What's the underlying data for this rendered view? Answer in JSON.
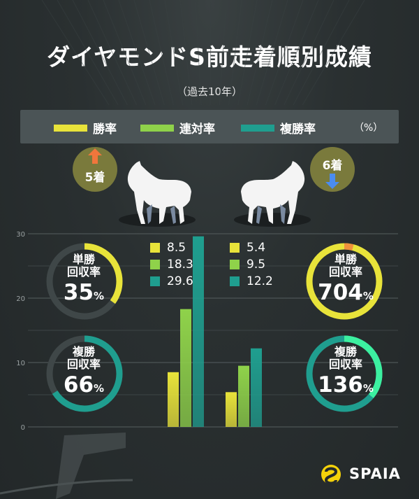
{
  "title": "ダイヤモンドS前走着順別成績",
  "subtitle": "（過去10年）",
  "legend": {
    "items": [
      {
        "label": "勝率",
        "color": "#e8e33a"
      },
      {
        "label": "連対率",
        "color": "#8fd24a"
      },
      {
        "label": "複勝率",
        "color": "#1f9e8f"
      }
    ],
    "unit": "（%）"
  },
  "groups": {
    "left": {
      "label": "5着",
      "arrow": "up"
    },
    "right": {
      "label": "6着",
      "arrow": "down"
    }
  },
  "values_text": {
    "left": [
      "8.5",
      "18.3",
      "29.6"
    ],
    "right": [
      "5.4",
      "9.5",
      "12.2"
    ]
  },
  "rings": {
    "left_win": {
      "label1": "単勝",
      "label2": "回収率",
      "value": "35",
      "unit": "%",
      "fraction": 0.35,
      "color": "#e8e33a"
    },
    "left_place": {
      "label1": "複勝",
      "label2": "回収率",
      "value": "66",
      "unit": "%",
      "fraction": 0.66,
      "color": "#1f9e8f"
    },
    "right_win": {
      "label1": "単勝",
      "label2": "回収率",
      "value": "704",
      "unit": "%",
      "fraction": 7.04,
      "color": "#e8e33a",
      "overflow_color": "#f0913c"
    },
    "right_place": {
      "label1": "複勝",
      "label2": "回収率",
      "value": "136",
      "unit": "%",
      "fraction": 1.36,
      "color": "#1f9e8f",
      "overflow_color": "#3cf0a0"
    }
  },
  "chart_data": {
    "type": "bar",
    "categories": [
      "5着",
      "6着"
    ],
    "series": [
      {
        "name": "勝率",
        "values": [
          8.5,
          5.4
        ],
        "color": "#e8e33a"
      },
      {
        "name": "連対率",
        "values": [
          18.3,
          9.5
        ],
        "color": "#8fd24a"
      },
      {
        "name": "複勝率",
        "values": [
          29.6,
          12.2
        ],
        "color": "#1f9e8f"
      }
    ],
    "yticks": [
      "0",
      "10",
      "20",
      "30"
    ],
    "ylim": [
      0,
      30
    ],
    "grid": true,
    "ylabel": "",
    "xlabel": ""
  },
  "brand": "SPAIA"
}
